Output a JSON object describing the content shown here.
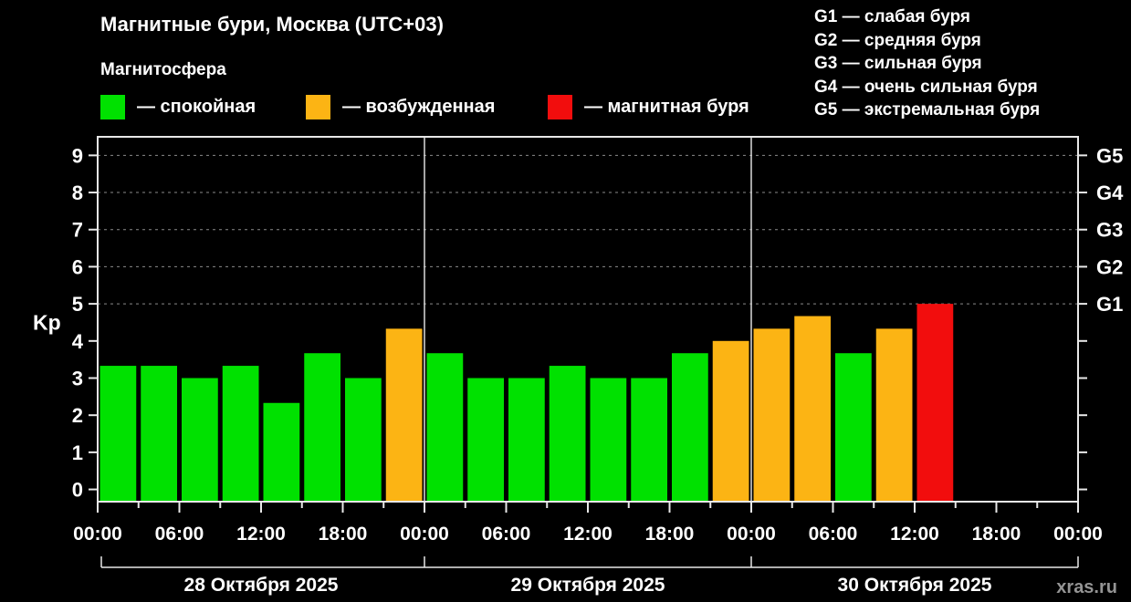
{
  "watermark": "xras.ru",
  "storm_scale_legend": [
    "G1 — слабая буря",
    "G2 — средняя буря",
    "G3 — сильная буря",
    "G4 — очень сильная буря",
    "G5 — экстремальная буря"
  ],
  "chart_data": {
    "type": "bar",
    "title": "Магнитные бури, Москва (UTC+03)",
    "subtitle": "Магнитосфера",
    "ylabel": "Kp",
    "ylim": [
      0,
      9
    ],
    "grid": true,
    "grid_levels": [
      5,
      6,
      7,
      8,
      9
    ],
    "yticks": [
      0,
      1,
      2,
      3,
      4,
      5,
      6,
      7,
      8,
      9
    ],
    "right_axis": [
      {
        "value": 5,
        "label": "G1"
      },
      {
        "value": 6,
        "label": "G2"
      },
      {
        "value": 7,
        "label": "G3"
      },
      {
        "value": 8,
        "label": "G4"
      },
      {
        "value": 9,
        "label": "G5"
      }
    ],
    "state_legend": [
      {
        "state": "спокойная",
        "label": "— спокойная",
        "color": "#00e100"
      },
      {
        "state": "возбужденная",
        "label": "— возбужденная",
        "color": "#fcb414"
      },
      {
        "state": "магнитная буря",
        "label": "— магнитная буря",
        "color": "#f20d0d"
      }
    ],
    "bar_color_map": {
      "green": "#00e100",
      "orange": "#fcb414",
      "red": "#f20d0d"
    },
    "bar_interval_hours": 3,
    "x_time_labels": [
      "00:00",
      "06:00",
      "12:00",
      "18:00",
      "00:00",
      "06:00",
      "12:00",
      "18:00",
      "00:00",
      "06:00",
      "12:00",
      "18:00",
      "00:00"
    ],
    "days": [
      {
        "date": "28 Октября 2025",
        "values": [
          3.33,
          3.33,
          3.0,
          3.33,
          2.33,
          3.67,
          3.0,
          4.33
        ],
        "colors": [
          "green",
          "green",
          "green",
          "green",
          "green",
          "green",
          "green",
          "orange"
        ]
      },
      {
        "date": "29 Октября 2025",
        "values": [
          3.67,
          3.0,
          3.0,
          3.33,
          3.0,
          3.0,
          3.67,
          4.0
        ],
        "colors": [
          "green",
          "green",
          "green",
          "green",
          "green",
          "green",
          "green",
          "orange"
        ]
      },
      {
        "date": "30 Октября 2025",
        "values": [
          4.33,
          4.67,
          3.67,
          4.33,
          5.0,
          null,
          null,
          null
        ],
        "colors": [
          "orange",
          "orange",
          "green",
          "orange",
          "red",
          null,
          null,
          null
        ]
      }
    ]
  }
}
